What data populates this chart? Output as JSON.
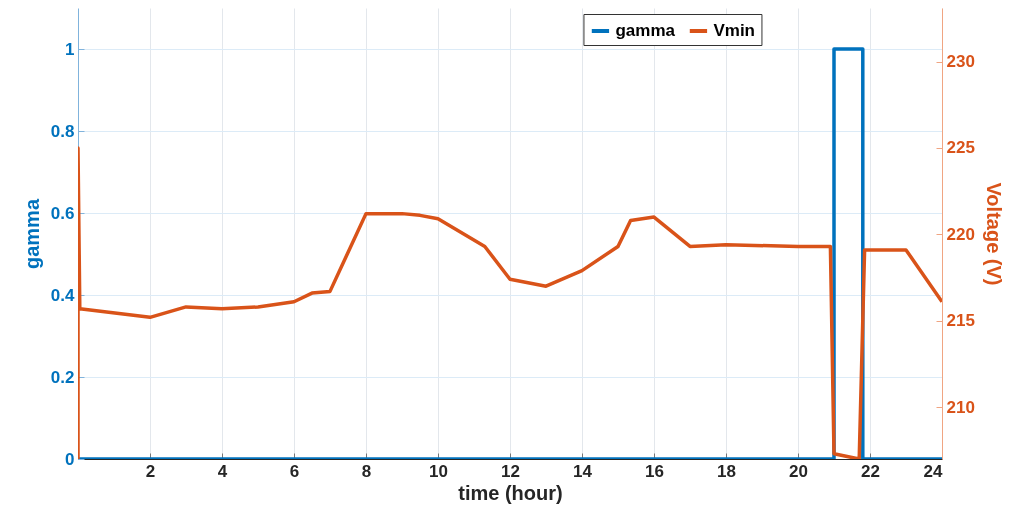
{
  "chart_data": {
    "type": "line",
    "xlabel": "time (hour)",
    "ylabel": "gamma",
    "y2label": "Voltage (V)",
    "xlim": [
      0,
      24
    ],
    "xticks": [
      2,
      4,
      6,
      8,
      10,
      12,
      14,
      16,
      18,
      20,
      22,
      24
    ],
    "ylim": [
      0,
      1.1
    ],
    "yticks": [
      0,
      0.2,
      0.4,
      0.6,
      0.8,
      1
    ],
    "y2lim": [
      207,
      233.1
    ],
    "y2ticks": [
      210,
      215,
      220,
      225,
      230
    ],
    "grid": true,
    "legend": "top right",
    "marker": "none",
    "line_style": "solid",
    "series": [
      {
        "name": "gamma",
        "color": "#0072bd",
        "x": [
          0,
          21,
          21,
          21.8,
          21.8,
          24
        ],
        "values": [
          0,
          0,
          1,
          1,
          0,
          0
        ]
      },
      {
        "name": "Vmin",
        "color": "#d95319",
        "axis": "y2",
        "x": [
          0,
          0,
          0.05,
          2,
          3,
          4,
          5,
          6,
          6.5,
          7,
          8,
          9,
          9.5,
          10,
          11.3,
          12,
          13,
          14,
          15,
          15.35,
          16,
          17,
          18,
          20,
          20.9,
          21,
          21.7,
          21.85,
          23,
          24
        ],
        "values": [
          207,
          225,
          215.7,
          215.2,
          215.8,
          215.7,
          215.8,
          216.1,
          216.6,
          216.7,
          221.2,
          221.2,
          221.1,
          220.9,
          219.3,
          217.4,
          217,
          217.9,
          219.3,
          220.8,
          221,
          219.3,
          219.4,
          219.3,
          219.3,
          207.3,
          207,
          219.1,
          219.1,
          216.1
        ]
      }
    ]
  }
}
